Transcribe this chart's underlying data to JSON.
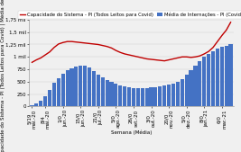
{
  "xlabel": "Semana (Média)",
  "ylabel_left": "Capacidade do Sistema - PI (Todos Leitos para Covid) | Média de Internações",
  "legend_line": "Capacidade do Sistema - PI (Todos Leitos para Covid)",
  "legend_bar": "Média de Internações - PI (Covid)",
  "bar_values": [
    30,
    60,
    120,
    200,
    340,
    470,
    560,
    660,
    730,
    760,
    800,
    830,
    820,
    780,
    720,
    650,
    580,
    530,
    490,
    460,
    420,
    400,
    390,
    370,
    360,
    360,
    370,
    380,
    390,
    400,
    420,
    440,
    460,
    490,
    550,
    640,
    730,
    820,
    920,
    1000,
    1060,
    1110,
    1160,
    1200,
    1230,
    1250
  ],
  "line_values": [
    890,
    940,
    980,
    1040,
    1100,
    1190,
    1260,
    1290,
    1310,
    1310,
    1300,
    1290,
    1280,
    1270,
    1260,
    1250,
    1230,
    1210,
    1180,
    1130,
    1090,
    1060,
    1040,
    1020,
    1000,
    980,
    960,
    950,
    940,
    930,
    920,
    940,
    960,
    980,
    1000,
    1000,
    990,
    1000,
    1020,
    1060,
    1110,
    1190,
    1310,
    1430,
    1540,
    1700
  ],
  "x_tick_positions": [
    0,
    3,
    7,
    11,
    15,
    19,
    23,
    27,
    31,
    35,
    39,
    43
  ],
  "x_tick_labels": [
    "5/19\nmái.-20",
    "8/4\nmái.-20",
    "1/0\njun.-20",
    "15/0\njun.-20",
    "21/0\njul.-20",
    "5/0\nago.-20",
    "26/0\nset.-20",
    "3/0\nout.-20",
    "20/0\nnov.-20",
    "5/0\ndez.-20",
    "8/0\njan.-21",
    "6/0\nmar.-21"
  ],
  "bar_color": "#4472c4",
  "line_color": "#c00000",
  "bg_color": "#f0f0f0",
  "plot_bg_color": "#f0f0f0",
  "y_max": 1750,
  "y_ticks": [
    0,
    250,
    500,
    750,
    1000,
    1250,
    1500,
    1750
  ],
  "y_tick_labels": [
    "0",
    "250",
    "500",
    "750",
    "1 mil",
    "1,25 mil",
    "1,5 mil",
    "1,75 mil"
  ],
  "tick_label_fontsize": 4,
  "legend_fontsize": 3.8,
  "axis_label_fontsize": 4
}
